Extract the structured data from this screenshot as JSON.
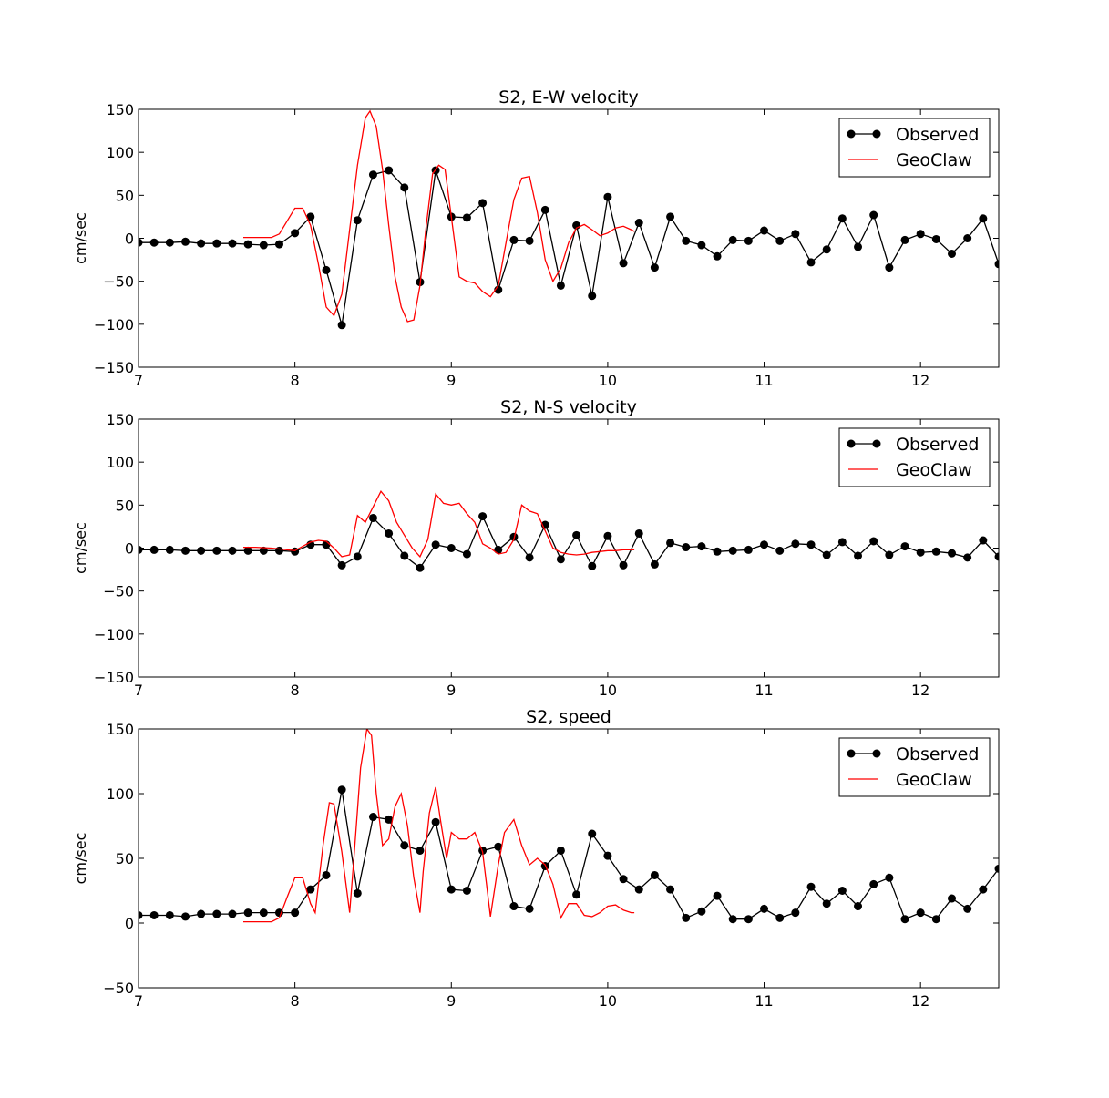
{
  "chart_data": [
    {
      "type": "line",
      "title": "S2, E-W velocity",
      "xlabel": "",
      "ylabel": "cm/sec",
      "xlim": [
        7,
        12.5
      ],
      "ylim": [
        -150,
        150
      ],
      "xticks": [
        "7",
        "8",
        "9",
        "10",
        "11",
        "12"
      ],
      "yticks": [
        "−150",
        "−100",
        "−50",
        "0",
        "50",
        "100",
        "150"
      ],
      "legend_position": "top-right",
      "grid": false,
      "series": [
        {
          "name": "Observed",
          "style": "black line with circle markers",
          "color": "#000000",
          "x": [
            7.0,
            7.1,
            7.2,
            7.3,
            7.4,
            7.5,
            7.6,
            7.7,
            7.8,
            7.9,
            8.0,
            8.1,
            8.2,
            8.3,
            8.4,
            8.5,
            8.6,
            8.7,
            8.8,
            8.9,
            9.0,
            9.1,
            9.2,
            9.3,
            9.4,
            9.5,
            9.6,
            9.7,
            9.8,
            9.9,
            10.0,
            10.1,
            10.2,
            10.3,
            10.4,
            10.5,
            10.6,
            10.7,
            10.8,
            10.9,
            11.0,
            11.1,
            11.2,
            11.3,
            11.4,
            11.5,
            11.6,
            11.7,
            11.8,
            11.9,
            12.0,
            12.1,
            12.2,
            12.3,
            12.4,
            12.5
          ],
          "y": [
            -5,
            -5,
            -5,
            -4,
            -6,
            -6,
            -6,
            -7,
            -8,
            -7,
            6,
            25,
            -37,
            -101,
            21,
            74,
            79,
            59,
            -51,
            79,
            25,
            24,
            41,
            -60,
            -2,
            -3,
            33,
            -55,
            15,
            -67,
            48,
            -29,
            18,
            -34,
            25,
            -3,
            -8,
            -21,
            -2,
            -3,
            9,
            -3,
            5,
            -28,
            -13,
            23,
            -10,
            27,
            -34,
            -2,
            5,
            -1,
            -18,
            0,
            23,
            -30
          ]
        },
        {
          "name": "GeoClaw",
          "style": "red line",
          "color": "#ff0000",
          "x": [
            7.67,
            7.75,
            7.8,
            7.85,
            7.9,
            7.95,
            8.0,
            8.05,
            8.1,
            8.15,
            8.2,
            8.25,
            8.3,
            8.35,
            8.4,
            8.45,
            8.48,
            8.52,
            8.56,
            8.6,
            8.64,
            8.68,
            8.72,
            8.76,
            8.8,
            8.84,
            8.88,
            8.92,
            8.96,
            9.0,
            9.05,
            9.1,
            9.15,
            9.2,
            9.25,
            9.3,
            9.35,
            9.4,
            9.45,
            9.5,
            9.55,
            9.6,
            9.65,
            9.7,
            9.75,
            9.8,
            9.85,
            9.9,
            9.95,
            10.0,
            10.05,
            10.1,
            10.15,
            10.17
          ],
          "y": [
            1,
            1,
            1,
            1,
            5,
            20,
            35,
            35,
            15,
            -30,
            -80,
            -90,
            -65,
            10,
            85,
            140,
            148,
            130,
            80,
            15,
            -45,
            -80,
            -97,
            -95,
            -55,
            15,
            75,
            85,
            80,
            25,
            -45,
            -50,
            -52,
            -62,
            -68,
            -55,
            -5,
            45,
            70,
            72,
            30,
            -25,
            -50,
            -35,
            -5,
            12,
            16,
            10,
            3,
            6,
            12,
            14,
            10,
            8
          ]
        }
      ]
    },
    {
      "type": "line",
      "title": "S2, N-S velocity",
      "xlabel": "",
      "ylabel": "cm/sec",
      "xlim": [
        7,
        12.5
      ],
      "ylim": [
        -150,
        150
      ],
      "xticks": [
        "7",
        "8",
        "9",
        "10",
        "11",
        "12"
      ],
      "yticks": [
        "−150",
        "−100",
        "−50",
        "0",
        "50",
        "100",
        "150"
      ],
      "legend_position": "top-right",
      "grid": false,
      "series": [
        {
          "name": "Observed",
          "style": "black line with circle markers",
          "color": "#000000",
          "x": [
            7.0,
            7.1,
            7.2,
            7.3,
            7.4,
            7.5,
            7.6,
            7.7,
            7.8,
            7.9,
            8.0,
            8.1,
            8.2,
            8.3,
            8.4,
            8.5,
            8.6,
            8.7,
            8.8,
            8.9,
            9.0,
            9.1,
            9.2,
            9.3,
            9.4,
            9.5,
            9.6,
            9.7,
            9.8,
            9.9,
            10.0,
            10.1,
            10.2,
            10.3,
            10.4,
            10.5,
            10.6,
            10.7,
            10.8,
            10.9,
            11.0,
            11.1,
            11.2,
            11.3,
            11.4,
            11.5,
            11.6,
            11.7,
            11.8,
            11.9,
            12.0,
            12.1,
            12.2,
            12.3,
            12.4,
            12.5
          ],
          "y": [
            -2,
            -2,
            -2,
            -3,
            -3,
            -3,
            -3,
            -3,
            -3,
            -3,
            -4,
            4,
            4,
            -20,
            -10,
            35,
            17,
            -9,
            -23,
            4,
            0,
            -7,
            37,
            -2,
            13,
            -11,
            27,
            -13,
            15,
            -21,
            14,
            -20,
            17,
            -19,
            6,
            1,
            2,
            -4,
            -3,
            -2,
            4,
            -3,
            5,
            4,
            -8,
            7,
            -9,
            8,
            -8,
            2,
            -5,
            -4,
            -6,
            -11,
            9,
            -10
          ]
        },
        {
          "name": "GeoClaw",
          "style": "red line",
          "color": "#ff0000",
          "x": [
            7.67,
            7.75,
            7.85,
            7.95,
            8.0,
            8.05,
            8.1,
            8.15,
            8.2,
            8.25,
            8.3,
            8.35,
            8.4,
            8.45,
            8.5,
            8.55,
            8.6,
            8.65,
            8.7,
            8.75,
            8.8,
            8.85,
            8.9,
            8.95,
            9.0,
            9.05,
            9.1,
            9.15,
            9.2,
            9.25,
            9.3,
            9.35,
            9.4,
            9.45,
            9.5,
            9.55,
            9.6,
            9.65,
            9.7,
            9.75,
            9.8,
            9.85,
            9.9,
            9.95,
            10.0,
            10.05,
            10.1,
            10.17
          ],
          "y": [
            1,
            1,
            0,
            -2,
            -3,
            2,
            7,
            9,
            8,
            0,
            -10,
            -8,
            38,
            30,
            48,
            66,
            55,
            30,
            15,
            0,
            -10,
            10,
            63,
            52,
            50,
            52,
            40,
            30,
            5,
            0,
            -7,
            -5,
            10,
            50,
            43,
            40,
            20,
            0,
            -5,
            -7,
            -8,
            -7,
            -5,
            -4,
            -3,
            -3,
            -2,
            -2
          ]
        }
      ]
    },
    {
      "type": "line",
      "title": "S2, speed",
      "xlabel": "",
      "ylabel": "cm/sec",
      "xlim": [
        7,
        12.5
      ],
      "ylim": [
        -50,
        150
      ],
      "xticks": [
        "7",
        "8",
        "9",
        "10",
        "11",
        "12"
      ],
      "yticks": [
        "−50",
        "0",
        "50",
        "100",
        "150"
      ],
      "legend_position": "top-right",
      "grid": false,
      "series": [
        {
          "name": "Observed",
          "style": "black line with circle markers",
          "color": "#000000",
          "x": [
            7.0,
            7.1,
            7.2,
            7.3,
            7.4,
            7.5,
            7.6,
            7.7,
            7.8,
            7.9,
            8.0,
            8.1,
            8.2,
            8.3,
            8.4,
            8.5,
            8.6,
            8.7,
            8.8,
            8.9,
            9.0,
            9.1,
            9.2,
            9.3,
            9.4,
            9.5,
            9.6,
            9.7,
            9.8,
            9.9,
            10.0,
            10.1,
            10.2,
            10.3,
            10.4,
            10.5,
            10.6,
            10.7,
            10.8,
            10.9,
            11.0,
            11.1,
            11.2,
            11.3,
            11.4,
            11.5,
            11.6,
            11.7,
            11.8,
            11.9,
            12.0,
            12.1,
            12.2,
            12.3,
            12.4,
            12.5
          ],
          "y": [
            6,
            6,
            6,
            5,
            7,
            7,
            7,
            8,
            8,
            8,
            8,
            26,
            37,
            103,
            23,
            82,
            80,
            60,
            56,
            78,
            26,
            25,
            56,
            59,
            13,
            11,
            44,
            56,
            22,
            69,
            52,
            34,
            26,
            37,
            26,
            4,
            9,
            21,
            3,
            3,
            11,
            4,
            8,
            28,
            15,
            25,
            13,
            30,
            35,
            3,
            8,
            3,
            19,
            11,
            26,
            42
          ]
        },
        {
          "name": "GeoClaw",
          "style": "red line",
          "color": "#ff0000",
          "x": [
            7.67,
            7.75,
            7.85,
            7.9,
            7.95,
            8.0,
            8.05,
            8.1,
            8.13,
            8.18,
            8.22,
            8.25,
            8.3,
            8.35,
            8.38,
            8.42,
            8.46,
            8.49,
            8.52,
            8.56,
            8.6,
            8.64,
            8.68,
            8.72,
            8.76,
            8.8,
            8.82,
            8.86,
            8.9,
            8.93,
            8.97,
            9.0,
            9.05,
            9.1,
            9.15,
            9.2,
            9.25,
            9.3,
            9.34,
            9.4,
            9.45,
            9.5,
            9.55,
            9.6,
            9.65,
            9.7,
            9.75,
            9.8,
            9.85,
            9.9,
            9.95,
            10.0,
            10.05,
            10.1,
            10.15,
            10.17
          ],
          "y": [
            1,
            1,
            1,
            4,
            20,
            35,
            35,
            15,
            8,
            60,
            93,
            92,
            55,
            8,
            55,
            120,
            150,
            145,
            100,
            60,
            65,
            90,
            100,
            75,
            35,
            8,
            40,
            85,
            105,
            80,
            50,
            70,
            65,
            65,
            70,
            55,
            5,
            45,
            70,
            80,
            60,
            45,
            50,
            45,
            30,
            4,
            15,
            15,
            6,
            5,
            8,
            13,
            14,
            10,
            8,
            8
          ]
        }
      ]
    }
  ]
}
